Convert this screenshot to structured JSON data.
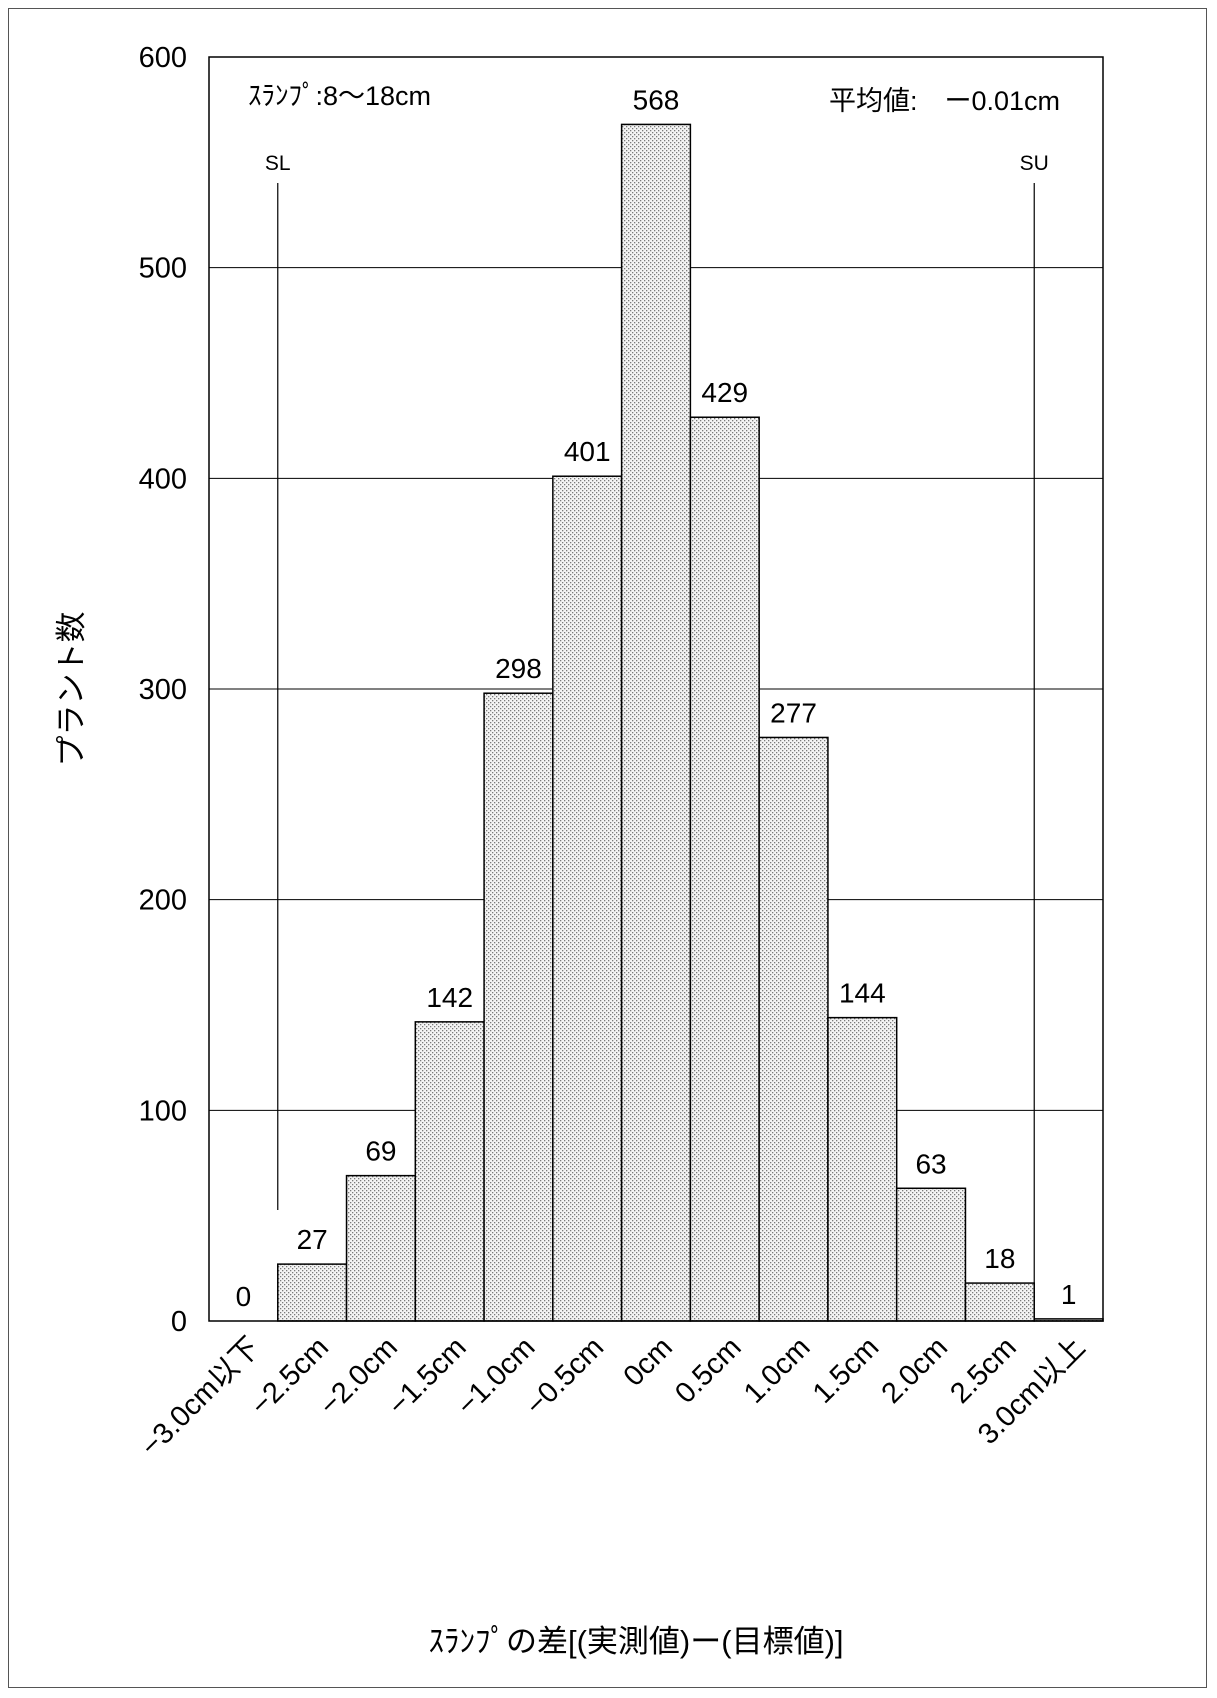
{
  "chart_data": {
    "type": "bar",
    "categories": [
      "−3.0cm以下",
      "−2.5cm",
      "−2.0cm",
      "−1.5cm",
      "−1.0cm",
      "−0.5cm",
      "0cm",
      "0.5cm",
      "1.0cm",
      "1.5cm",
      "2.0cm",
      "2.5cm",
      "3.0cm以上"
    ],
    "values": [
      0,
      27,
      69,
      142,
      298,
      401,
      568,
      429,
      277,
      144,
      63,
      18,
      1
    ],
    "value_labels": [
      "0",
      "27",
      "69",
      "142",
      "298",
      "401",
      "568",
      "429",
      "277",
      "144",
      "63",
      "18",
      "1"
    ],
    "yticks": [
      0,
      100,
      200,
      300,
      400,
      500,
      600
    ],
    "ytick_labels": [
      "0",
      "100",
      "200",
      "300",
      "400",
      "500",
      "600"
    ],
    "ylim": [
      0,
      600
    ],
    "title": "",
    "xlabel": "ｽﾗﾝﾌﾟの差[(実測値)ー(目標値)]",
    "ylabel": "プラント数",
    "grid": true,
    "bar_fill": "#e3e3e3",
    "annotations": {
      "range_text": "ｽﾗﾝﾌﾟ:8〜18cm",
      "mean_text": "平均値:　ー0.01cm",
      "lower_spec": "SL",
      "upper_spec": "SU"
    }
  }
}
